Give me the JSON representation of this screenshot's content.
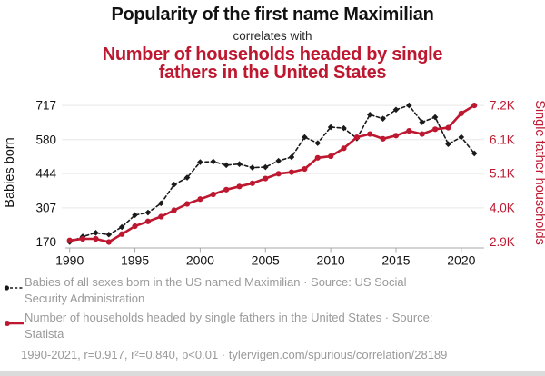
{
  "header": {
    "title": "Popularity of the first name Maximilian",
    "connector": "correlates with",
    "red_title_lines": [
      "Number of households headed by single",
      "fathers in the United States"
    ]
  },
  "colors": {
    "accent_red": "#be1730",
    "series_black": "#1a1a1a",
    "grid": "#e8e8e8",
    "axis_line": "#a8a8a8",
    "tick_text": "#111111",
    "legend_text": "#9a9a9a"
  },
  "chart_data": {
    "type": "line",
    "title": "Popularity of the first name Maximilian correlates with Number of households headed by single fathers in the United States",
    "x": [
      1990,
      1991,
      1992,
      1993,
      1994,
      1995,
      1996,
      1997,
      1998,
      1999,
      2000,
      2001,
      2002,
      2003,
      2004,
      2005,
      2006,
      2007,
      2008,
      2009,
      2010,
      2011,
      2012,
      2013,
      2014,
      2015,
      2016,
      2017,
      2018,
      2019,
      2020,
      2021
    ],
    "series": [
      {
        "name": "Babies of all sexes born in the US named Maximilian",
        "axis": "left",
        "style": "dashed-diamond",
        "values": [
          170,
          192,
          207,
          200,
          230,
          278,
          288,
          325,
          400,
          428,
          490,
          492,
          478,
          482,
          468,
          470,
          495,
          510,
          590,
          566,
          630,
          626,
          585,
          680,
          664,
          700,
          717,
          650,
          670,
          562,
          590,
          525
        ]
      },
      {
        "name": "Number of households headed by single fathers in the United States (thousands)",
        "axis": "right",
        "style": "solid-circle",
        "values": [
          2.95,
          3.0,
          3.0,
          2.9,
          3.15,
          3.4,
          3.55,
          3.7,
          3.9,
          4.1,
          4.25,
          4.4,
          4.55,
          4.65,
          4.75,
          4.9,
          5.05,
          5.1,
          5.2,
          5.55,
          5.6,
          5.85,
          6.2,
          6.3,
          6.15,
          6.25,
          6.4,
          6.3,
          6.45,
          6.5,
          6.95,
          7.2
        ]
      }
    ],
    "left_axis": {
      "label": "Babies born",
      "ticks": [
        170,
        307,
        444,
        580,
        717
      ],
      "range": [
        170,
        717
      ]
    },
    "right_axis": {
      "label": "Single father households",
      "ticks": [
        "2.9K",
        "4.0K",
        "5.1K",
        "6.1K",
        "7.2K"
      ],
      "range": [
        2.9,
        7.2
      ]
    },
    "x_axis": {
      "ticks": [
        1990,
        1995,
        2000,
        2005,
        2010,
        2015,
        2020
      ],
      "range": [
        1990,
        2021
      ]
    },
    "grid": "horizontal-only",
    "legend_position": "bottom"
  },
  "legend": {
    "items": [
      {
        "lines": [
          "Babies of all sexes born in the US named Maximilian · Source: US Social",
          "Security Administration"
        ]
      },
      {
        "lines": [
          "Number of households headed by single fathers in the United States · Source:",
          "Statista"
        ]
      }
    ],
    "footnote": "1990-2021, r=0.917, r²=0.840, p<0.01 · tylervigen.com/spurious/correlation/28189"
  }
}
